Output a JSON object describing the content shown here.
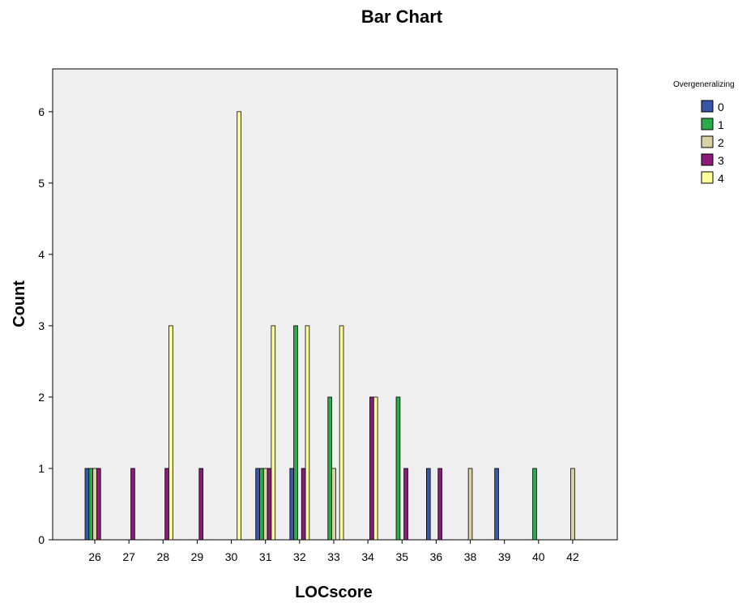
{
  "chart_data": {
    "type": "bar",
    "title": "Bar Chart",
    "xlabel": "LOCscore",
    "ylabel": "Count",
    "ylim": [
      0,
      6.6
    ],
    "yticks": [
      0,
      1,
      2,
      3,
      4,
      5,
      6
    ],
    "grid": false,
    "legend_position": "top-right",
    "legend_title": "Overgeneralizing",
    "categories": [
      "26",
      "27",
      "28",
      "29",
      "30",
      "31",
      "32",
      "33",
      "34",
      "35",
      "36",
      "38",
      "39",
      "40",
      "42"
    ],
    "series": [
      {
        "name": "0",
        "color": "#3A56A8",
        "values": [
          1,
          0,
          0,
          0,
          0,
          1,
          1,
          0,
          0,
          0,
          1,
          0,
          1,
          0,
          0
        ]
      },
      {
        "name": "1",
        "color": "#2BAA4A",
        "values": [
          1,
          0,
          0,
          0,
          0,
          1,
          3,
          2,
          0,
          2,
          0,
          0,
          0,
          1,
          0
        ]
      },
      {
        "name": "2",
        "color": "#D8D2A4",
        "values": [
          1,
          0,
          0,
          0,
          0,
          1,
          0,
          1,
          0,
          0,
          0,
          1,
          0,
          0,
          1
        ]
      },
      {
        "name": "3",
        "color": "#8B1A7A",
        "values": [
          1,
          1,
          1,
          1,
          0,
          1,
          1,
          0,
          2,
          1,
          1,
          0,
          0,
          0,
          0
        ]
      },
      {
        "name": "4",
        "color": "#FFFF9A",
        "values": [
          0,
          0,
          3,
          0,
          6,
          3,
          3,
          3,
          2,
          0,
          0,
          0,
          0,
          0,
          0
        ]
      }
    ]
  },
  "style": {
    "plot_background": "#EFEFEF",
    "bar_stroke": "#000000"
  }
}
